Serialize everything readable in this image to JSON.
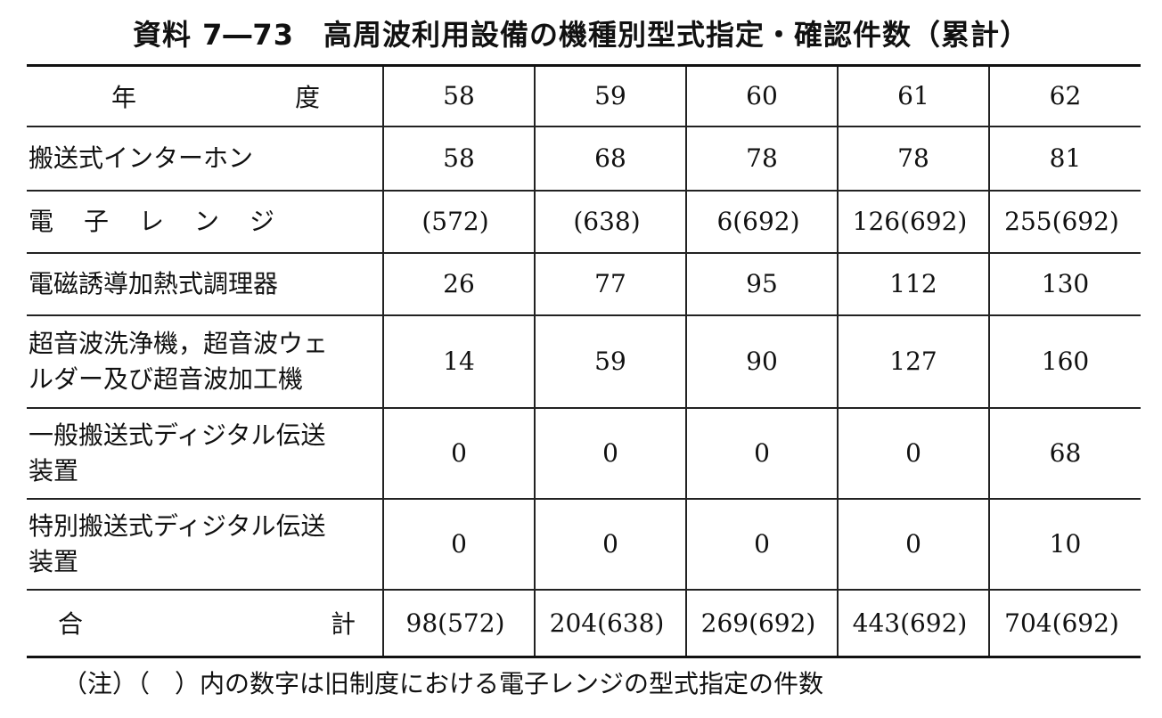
{
  "title": "資料 7―73　高周波利用設備の機種別型式指定・確認件数（累計）",
  "header": {
    "label_left": "年",
    "label_right": "度",
    "years": [
      "58",
      "59",
      "60",
      "61",
      "62"
    ]
  },
  "rows": [
    {
      "label": "搬送式インターホン",
      "values": [
        "58",
        "68",
        "78",
        "78",
        "81"
      ]
    },
    {
      "label": "電子レンジ",
      "values": [
        "(572)",
        "(638)",
        "6(692)",
        "126(692)",
        "255(692)"
      ]
    },
    {
      "label": "電磁誘導加熱式調理器",
      "values": [
        "26",
        "77",
        "95",
        "112",
        "130"
      ]
    },
    {
      "label_lines": [
        "超音波洗浄機，超音波ウェ",
        "ルダー及び超音波加工機"
      ],
      "values": [
        "14",
        "59",
        "90",
        "127",
        "160"
      ]
    },
    {
      "label_lines": [
        "一般搬送式ディジタル伝送",
        "装置"
      ],
      "values": [
        "0",
        "0",
        "0",
        "0",
        "68"
      ]
    },
    {
      "label_lines": [
        "特別搬送式ディジタル伝送",
        "装置"
      ],
      "values": [
        "0",
        "0",
        "0",
        "0",
        "10"
      ]
    }
  ],
  "total": {
    "label_left": "合",
    "label_right": "計",
    "values": [
      "98(572)",
      "204(638)",
      "269(692)",
      "443(692)",
      "704(692)"
    ]
  },
  "note": "（注）（　）内の数字は旧制度における電子レンジの型式指定の件数"
}
